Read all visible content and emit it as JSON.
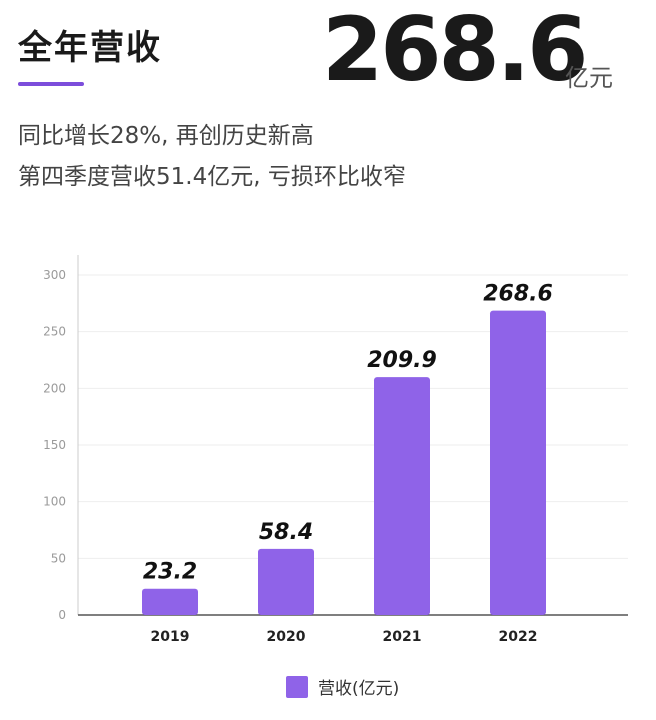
{
  "header": {
    "title": "全年营收",
    "highlight_value": "268.6",
    "highlight_unit": "亿元",
    "subline_1": "同比增长28%, 再创历史新高",
    "subline_2": "第四季度营收51.4亿元, 亏损环比收窄"
  },
  "colors": {
    "accent": "#7c4ddb",
    "bar": "#8f63e8"
  },
  "chart_data": {
    "type": "bar",
    "categories": [
      "2019",
      "2020",
      "2021",
      "2022"
    ],
    "series": [
      {
        "name": "营收(亿元)",
        "values": [
          23.2,
          58.4,
          209.9,
          268.6
        ]
      }
    ],
    "data_labels": [
      "23.2",
      "58.4",
      "209.9",
      "268.6"
    ],
    "yticks": [
      0,
      50,
      100,
      150,
      200,
      250,
      300
    ],
    "ylim": [
      0,
      300
    ],
    "grid": true,
    "legend_position": "bottom"
  },
  "legend": {
    "label": "营收(亿元)"
  }
}
